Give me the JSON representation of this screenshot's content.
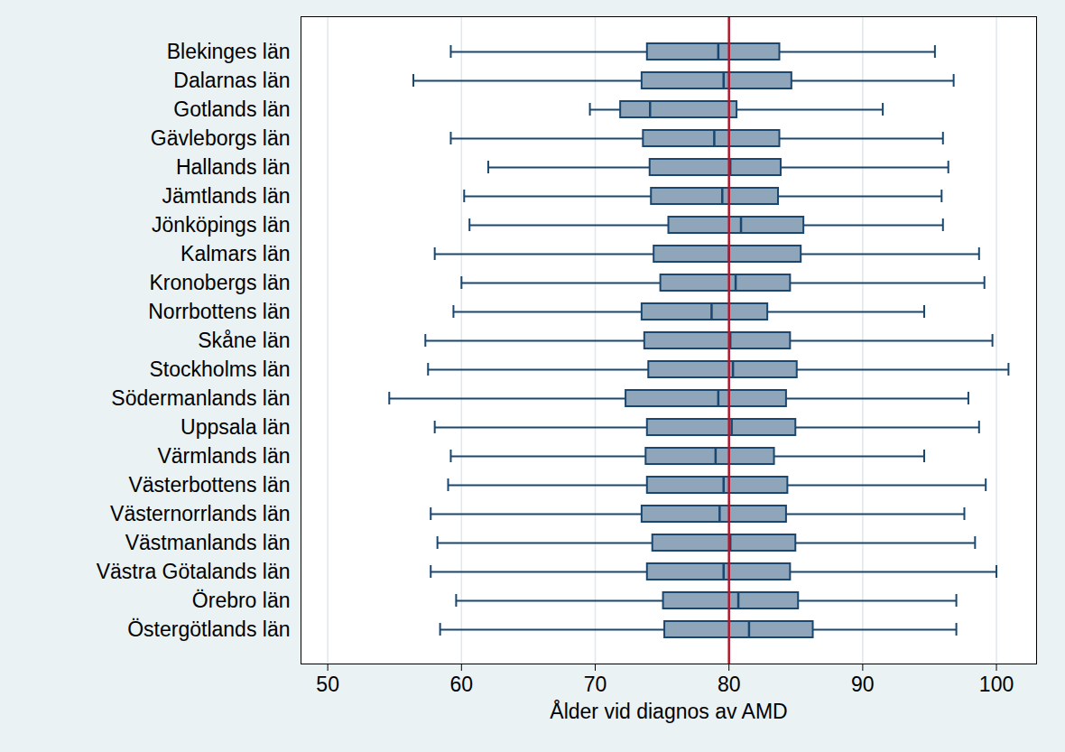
{
  "chart_data": {
    "type": "boxplot",
    "orientation": "horizontal",
    "x_label": "Ålder vid diagnos av AMD",
    "xlim": [
      48,
      103
    ],
    "xticks": [
      50,
      60,
      70,
      80,
      90,
      100
    ],
    "grid": true,
    "color": "#8fa5ba",
    "reference_line": {
      "value": 80,
      "color": "#b0182e"
    },
    "categories": [
      "Blekinges län",
      "Dalarnas län",
      "Gotlands län",
      "Gävleborgs län",
      "Hallands län",
      "Jämtlands län",
      "Jönköpings län",
      "Kalmars län",
      "Kronobergs län",
      "Norrbottens län",
      "Skåne län",
      "Stockholms län",
      "Södermanlands län",
      "Uppsala län",
      "Värmlands län",
      "Västerbottens län",
      "Västernorrlands län",
      "Västmanlands län",
      "Västra Götalands län",
      "Örebro län",
      "Östergötlands län"
    ],
    "whisker_low": [
      59.2,
      56.4,
      69.6,
      59.2,
      62.0,
      60.2,
      60.6,
      58.0,
      60.0,
      59.4,
      57.3,
      57.5,
      54.6,
      58.0,
      59.2,
      59.0,
      57.7,
      58.2,
      57.7,
      59.6,
      58.4
    ],
    "q1": [
      73.9,
      73.5,
      71.9,
      73.6,
      74.1,
      74.2,
      75.5,
      74.4,
      74.9,
      73.5,
      73.7,
      74.0,
      72.3,
      73.9,
      73.8,
      73.9,
      73.5,
      74.3,
      73.9,
      75.1,
      75.2
    ],
    "median": [
      79.2,
      79.6,
      74.1,
      78.9,
      80.1,
      79.5,
      80.9,
      80.0,
      80.5,
      78.7,
      80.1,
      80.3,
      79.2,
      80.2,
      79.0,
      79.6,
      79.3,
      80.1,
      79.6,
      80.7,
      81.5
    ],
    "q3": [
      83.8,
      84.7,
      80.6,
      83.8,
      83.9,
      83.7,
      85.6,
      85.4,
      84.6,
      82.9,
      84.6,
      85.1,
      84.3,
      85.0,
      83.4,
      84.4,
      84.3,
      85.0,
      84.6,
      85.2,
      86.3
    ],
    "whisker_high": [
      95.4,
      96.8,
      91.5,
      96.0,
      96.4,
      95.9,
      96.0,
      98.7,
      99.1,
      94.6,
      99.7,
      100.9,
      97.9,
      98.7,
      94.6,
      99.2,
      97.6,
      98.4,
      100.0,
      97.0,
      97.0
    ]
  }
}
